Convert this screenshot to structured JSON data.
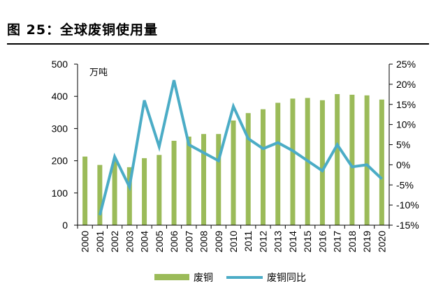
{
  "figure": {
    "title": "图 25：全球废铜使用量"
  },
  "chart_data": {
    "type": "bar+line",
    "unit_label": "万吨",
    "categories": [
      "2000",
      "2001",
      "2002",
      "2003",
      "2004",
      "2005",
      "2006",
      "2007",
      "2008",
      "2009",
      "2010",
      "2011",
      "2012",
      "2013",
      "2014",
      "2015",
      "2016",
      "2017",
      "2018",
      "2019",
      "2020"
    ],
    "series": [
      {
        "name": "废铜",
        "type": "bar",
        "axis": "left",
        "color": "#9BBB59",
        "values": [
          213,
          187,
          200,
          180,
          208,
          218,
          262,
          275,
          283,
          283,
          325,
          348,
          360,
          380,
          393,
          395,
          388,
          407,
          405,
          403,
          390
        ]
      },
      {
        "name": "废铜同比",
        "type": "line",
        "axis": "right",
        "color": "#4BACC6",
        "values": [
          null,
          -12.5,
          2.0,
          -5.5,
          16.0,
          4.5,
          21.0,
          5.0,
          3.0,
          1.0,
          14.5,
          6.5,
          4.0,
          5.5,
          3.5,
          1.0,
          -1.5,
          5.0,
          -0.5,
          0.0,
          -3.5
        ]
      }
    ],
    "y_left": {
      "min": 0,
      "max": 500,
      "ticks": [
        "0",
        "100",
        "200",
        "300",
        "400",
        "500"
      ]
    },
    "y_right": {
      "min": -15,
      "max": 25,
      "ticks": [
        "-15%",
        "-10%",
        "-5%",
        "0%",
        "5%",
        "10%",
        "15%",
        "20%",
        "25%"
      ]
    },
    "legend": {
      "placement": "bottom"
    },
    "grid": false
  }
}
